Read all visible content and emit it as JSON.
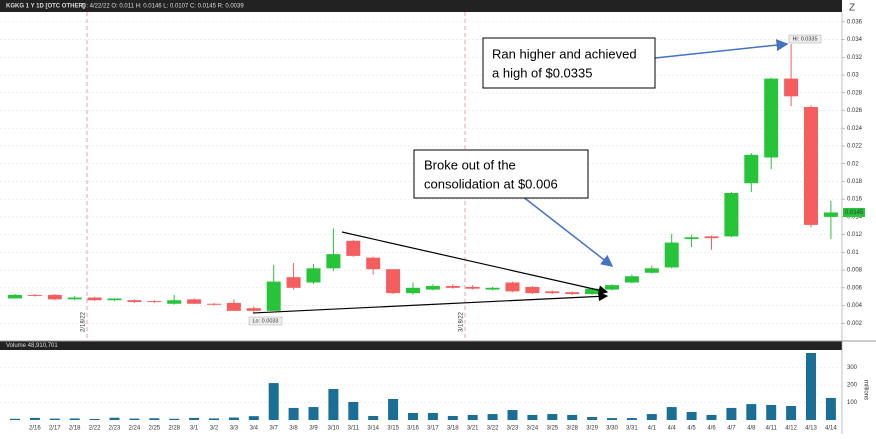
{
  "chart_data": [
    {
      "type": "candlestick",
      "title": "KGKG 1 Y 1D [OTC OTHER]",
      "subtitle": "D: 4/22/22   O: 0.011   H: 0.0146   L: 0.0107   C: 0.0145   R: 0.0039",
      "open": [
        0.0048,
        0.0052,
        0.0052,
        0.0047,
        0.0049,
        0.0046,
        0.0046,
        0.0045,
        0.0042,
        0.0047,
        0.0042,
        0.0043,
        0.0037,
        0.0034,
        0.0072,
        0.0066,
        0.0082,
        0.0113,
        0.0094,
        0.0081,
        0.0054,
        0.0058,
        0.0062,
        0.0061,
        0.0058,
        0.0066,
        0.0061,
        0.0056,
        0.0055,
        0.0053,
        0.0058,
        0.0066,
        0.0077,
        0.0083,
        0.0115,
        0.0118,
        0.0118,
        0.0178,
        0.0207,
        0.0296,
        0.0264,
        0.014
      ],
      "high": [
        0.0053,
        0.0053,
        0.0053,
        0.0051,
        0.005,
        0.0048,
        0.0047,
        0.0046,
        0.0052,
        0.0048,
        0.0043,
        0.0047,
        0.0039,
        0.0086,
        0.0088,
        0.0087,
        0.0127,
        0.0114,
        0.0095,
        0.0081,
        0.0066,
        0.0064,
        0.0064,
        0.0063,
        0.0061,
        0.0067,
        0.0062,
        0.0057,
        0.0056,
        0.006,
        0.0064,
        0.0075,
        0.0085,
        0.0121,
        0.012,
        0.0119,
        0.0168,
        0.0212,
        0.0297,
        0.0335,
        0.0266,
        0.0158
      ],
      "low": [
        0.0048,
        0.005,
        0.0046,
        0.0046,
        0.0045,
        0.0045,
        0.0043,
        0.0043,
        0.0041,
        0.0042,
        0.004,
        0.0034,
        0.0033,
        0.0034,
        0.0058,
        0.0064,
        0.0079,
        0.0095,
        0.0075,
        0.0053,
        0.0052,
        0.0057,
        0.0059,
        0.0058,
        0.0057,
        0.0055,
        0.0053,
        0.0053,
        0.0052,
        0.0052,
        0.0057,
        0.0065,
        0.0076,
        0.0082,
        0.0106,
        0.0103,
        0.0117,
        0.0168,
        0.0194,
        0.0265,
        0.0128,
        0.0115
      ],
      "close": [
        0.0052,
        0.0051,
        0.0047,
        0.0049,
        0.0046,
        0.0048,
        0.0044,
        0.0044,
        0.0046,
        0.0042,
        0.0041,
        0.0034,
        0.0034,
        0.0067,
        0.006,
        0.0082,
        0.0098,
        0.0096,
        0.0081,
        0.0054,
        0.006,
        0.0062,
        0.006,
        0.0059,
        0.006,
        0.0056,
        0.0054,
        0.0054,
        0.0053,
        0.0059,
        0.0063,
        0.0073,
        0.0082,
        0.0111,
        0.0117,
        0.0116,
        0.0167,
        0.021,
        0.0296,
        0.0276,
        0.0131,
        0.0145
      ],
      "up_color": "#27c43a",
      "down_color": "#f45e5e",
      "ylim": [
        0,
        0.037
      ],
      "yticks": [
        0.002,
        0.004,
        0.006,
        0.008,
        0.01,
        0.012,
        0.014,
        0.016,
        0.018,
        0.02,
        0.022,
        0.024,
        0.026,
        0.028,
        0.03,
        0.032,
        0.034,
        0.036
      ],
      "grid": true,
      "last_label": "0.0145",
      "hi_label": "Hi: 0.0335",
      "lo_label": "Lo: 0.0033",
      "event_lines": [
        "2/18/22",
        "3/18/22"
      ],
      "annotations": [
        [
          "Ran higher and achieved",
          "a high of $0.0335"
        ],
        [
          "Broke out of the",
          "consolidation at $0.006"
        ]
      ]
    },
    {
      "type": "bar",
      "title": "Volume 48,910,701",
      "ylabel": "millions",
      "categories": [
        null,
        "2/16",
        "2/17",
        "2/18",
        "2/22",
        "2/23",
        "2/24",
        "2/25",
        "2/28",
        "3/1",
        "3/2",
        "3/3",
        "3/4",
        "3/7",
        "3/8",
        "3/9",
        "3/10",
        "3/11",
        "3/14",
        "3/15",
        "3/16",
        "3/17",
        "3/18",
        "3/21",
        "3/22",
        "3/23",
        "3/24",
        "3/25",
        "3/28",
        "3/29",
        "3/30",
        "3/31",
        "4/1",
        "4/4",
        "4/5",
        "4/6",
        "4/7",
        "4/8",
        "4/11",
        "4/12",
        "4/13",
        "4/14"
      ],
      "values": [
        7,
        12,
        8,
        9,
        6,
        13,
        8,
        10,
        7,
        12,
        9,
        14,
        22,
        211,
        69,
        74,
        177,
        103,
        23,
        120,
        40,
        40,
        23,
        29,
        34,
        57,
        29,
        34,
        29,
        17,
        11,
        11,
        34,
        74,
        46,
        29,
        69,
        91,
        86,
        80,
        383,
        126
      ],
      "color": "#1b6f96",
      "ylim": [
        0,
        400
      ],
      "yticks": [
        100,
        200,
        300
      ]
    }
  ]
}
